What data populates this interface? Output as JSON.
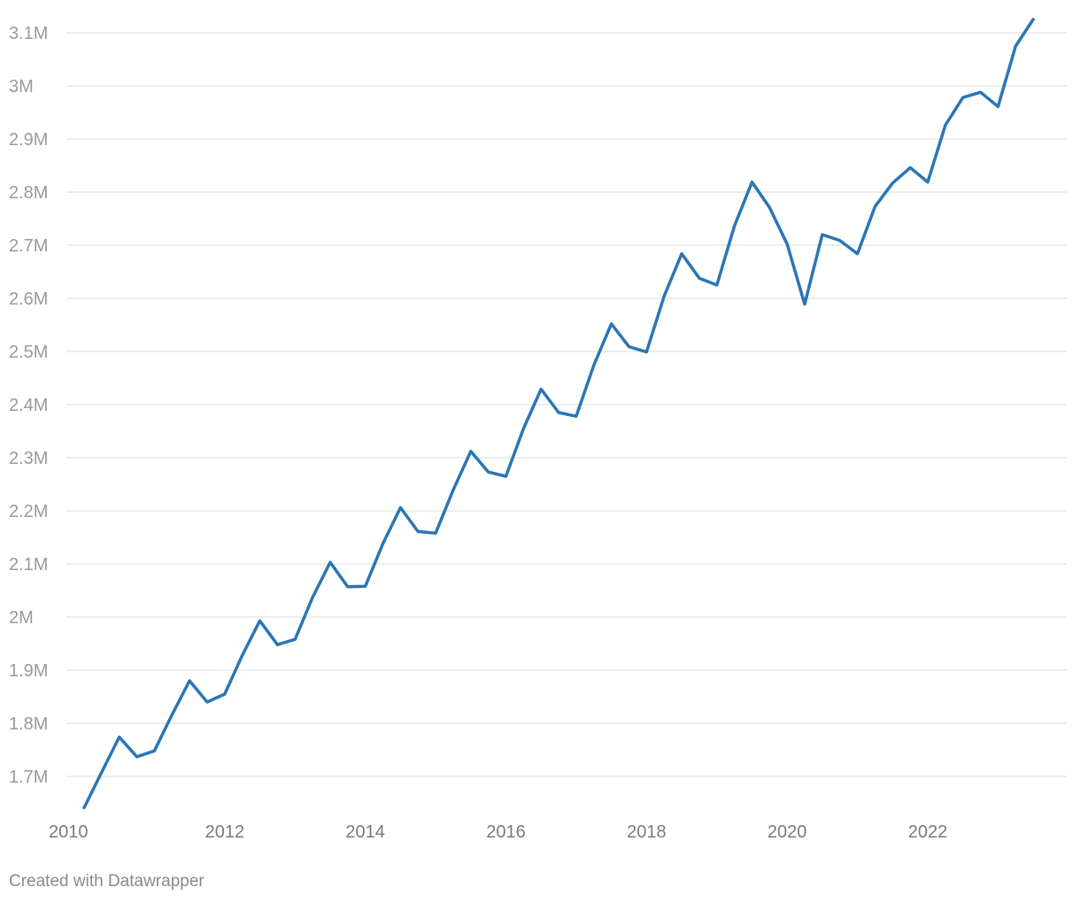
{
  "chart_data": {
    "type": "line",
    "title": "",
    "xlabel": "",
    "ylabel": "",
    "xlim": [
      2010,
      2023.75
    ],
    "ylim": [
      1.7,
      3.1
    ],
    "grid": true,
    "y_ticks": [
      {
        "value": 1.7,
        "label": "1.7M"
      },
      {
        "value": 1.8,
        "label": "1.8M"
      },
      {
        "value": 1.9,
        "label": "1.9M"
      },
      {
        "value": 2.0,
        "label": "2M"
      },
      {
        "value": 2.1,
        "label": "2.1M"
      },
      {
        "value": 2.2,
        "label": "2.2M"
      },
      {
        "value": 2.3,
        "label": "2.3M"
      },
      {
        "value": 2.4,
        "label": "2.4M"
      },
      {
        "value": 2.5,
        "label": "2.5M"
      },
      {
        "value": 2.6,
        "label": "2.6M"
      },
      {
        "value": 2.7,
        "label": "2.7M"
      },
      {
        "value": 2.8,
        "label": "2.8M"
      },
      {
        "value": 2.9,
        "label": "2.9M"
      },
      {
        "value": 3.0,
        "label": "3M"
      },
      {
        "value": 3.1,
        "label": "3.1M"
      }
    ],
    "x_ticks": [
      {
        "value": 2010,
        "label": "2010"
      },
      {
        "value": 2012,
        "label": "2012"
      },
      {
        "value": 2014,
        "label": "2014"
      },
      {
        "value": 2016,
        "label": "2016"
      },
      {
        "value": 2018,
        "label": "2018"
      },
      {
        "value": 2020,
        "label": "2020"
      },
      {
        "value": 2022,
        "label": "2022"
      }
    ],
    "series": [
      {
        "color": "#2a76b6",
        "points": [
          [
            2010.0,
            1.641
          ],
          [
            2010.25,
            1.708
          ],
          [
            2010.5,
            1.774
          ],
          [
            2010.75,
            1.737
          ],
          [
            2011.0,
            1.748
          ],
          [
            2011.25,
            1.816
          ],
          [
            2011.5,
            1.88
          ],
          [
            2011.75,
            1.84
          ],
          [
            2012.0,
            1.855
          ],
          [
            2012.25,
            1.928
          ],
          [
            2012.5,
            1.993
          ],
          [
            2012.75,
            1.948
          ],
          [
            2013.0,
            1.958
          ],
          [
            2013.25,
            2.037
          ],
          [
            2013.5,
            2.103
          ],
          [
            2013.75,
            2.057
          ],
          [
            2014.0,
            2.058
          ],
          [
            2014.25,
            2.138
          ],
          [
            2014.5,
            2.206
          ],
          [
            2014.75,
            2.161
          ],
          [
            2015.0,
            2.158
          ],
          [
            2015.25,
            2.239
          ],
          [
            2015.5,
            2.312
          ],
          [
            2015.75,
            2.273
          ],
          [
            2016.0,
            2.265
          ],
          [
            2016.25,
            2.355
          ],
          [
            2016.5,
            2.429
          ],
          [
            2016.75,
            2.385
          ],
          [
            2017.0,
            2.378
          ],
          [
            2017.25,
            2.474
          ],
          [
            2017.5,
            2.552
          ],
          [
            2017.75,
            2.509
          ],
          [
            2018.0,
            2.499
          ],
          [
            2018.25,
            2.604
          ],
          [
            2018.5,
            2.684
          ],
          [
            2018.75,
            2.638
          ],
          [
            2019.0,
            2.625
          ],
          [
            2019.25,
            2.736
          ],
          [
            2019.5,
            2.819
          ],
          [
            2019.75,
            2.771
          ],
          [
            2020.0,
            2.702
          ],
          [
            2020.25,
            2.589
          ],
          [
            2020.5,
            2.72
          ],
          [
            2020.75,
            2.709
          ],
          [
            2021.0,
            2.684
          ],
          [
            2021.25,
            2.773
          ],
          [
            2021.5,
            2.817
          ],
          [
            2021.75,
            2.846
          ],
          [
            2022.0,
            2.819
          ],
          [
            2022.25,
            2.926
          ],
          [
            2022.5,
            2.978
          ],
          [
            2022.75,
            2.988
          ],
          [
            2023.0,
            2.961
          ],
          [
            2023.25,
            3.075
          ],
          [
            2023.5,
            3.125
          ]
        ]
      }
    ]
  },
  "footer": {
    "credit": "Created with Datawrapper"
  }
}
